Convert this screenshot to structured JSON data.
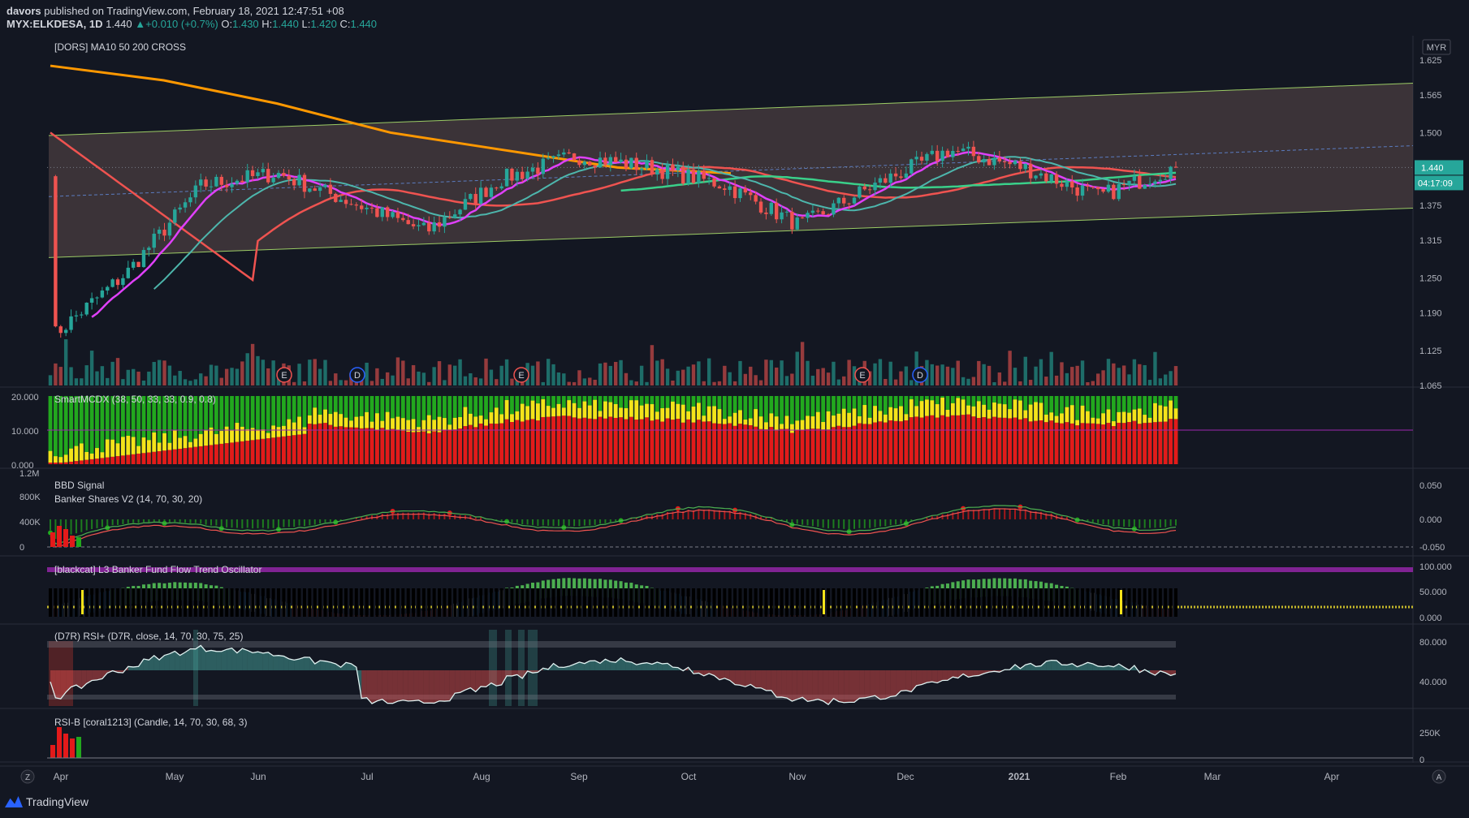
{
  "header": {
    "line1_user": "davors",
    "line1_rest": "published on TradingView.com, February 18, 2021 12:47:51 +08",
    "symbol": "MYX:ELKDESA, 1D",
    "last": "1.440",
    "change": "+0.010 (+0.7%)",
    "o_label": "O:",
    "o": "1.430",
    "h_label": "H:",
    "h": "1.440",
    "l_label": "L:",
    "l": "1.420",
    "c_label": "C:",
    "c": "1.440"
  },
  "currency": "MYR",
  "price_tag": "1.440",
  "countdown_tag": "04:17:09",
  "footer_brand": "TradingView",
  "axis_buttons": {
    "left": "Z",
    "right": "A"
  },
  "colors": {
    "bg": "#131722",
    "up": "#26a69a",
    "down": "#ef5350",
    "ma10": "#e040fb",
    "ma50": "#4db6ac",
    "ma200": "#ff9800",
    "ma_slow": "#ef5350",
    "ma_long": "#3ad08a",
    "channel": "#9ccc65",
    "channel_fill": "#5d4a4a"
  },
  "panes": [
    {
      "title": "[DORS] MA10 50 200 CROSS",
      "axis": [
        "1.625",
        "1.565",
        "1.500",
        "1.440",
        "1.375",
        "1.315",
        "1.250",
        "1.190",
        "1.125",
        "1.065"
      ]
    },
    {
      "title": "SmartMCDX (38, 50, 33, 33, 0.9, 0.8)",
      "axis": [
        "20.000",
        "10.000",
        "0.000"
      ]
    },
    {
      "title": "BBD Signal",
      "title2": "Banker Shares V2 (14, 70, 30, 20)",
      "axis": [
        "0.050",
        "0.000",
        "-0.050"
      ],
      "left_axis": [
        "1.2M",
        "800K",
        "400K",
        "0"
      ]
    },
    {
      "title": "[blackcat] L3 Banker Fund Flow Trend Oscillator",
      "axis": [
        "100.000",
        "50.000",
        "0.000"
      ]
    },
    {
      "title": "(D7R) RSI+ (D7R, close, 14, 70, 30, 75, 25)",
      "axis": [
        "80.000",
        "40.000"
      ]
    },
    {
      "title": "RSI-B [coral1213] (Candle, 14, 70, 30, 68, 3)",
      "axis": [
        "250K",
        "0"
      ]
    }
  ],
  "time_axis": [
    "Apr",
    "May",
    "Jun",
    "Jul",
    "Aug",
    "Sep",
    "Oct",
    "Nov",
    "Dec",
    "2021",
    "Feb",
    "Mar",
    "Apr"
  ],
  "event_markers": [
    {
      "label": "E"
    },
    {
      "label": "D"
    },
    {
      "label": "E"
    },
    {
      "label": "E"
    },
    {
      "label": "D"
    }
  ],
  "chart_data": {
    "type": "candlestick",
    "title": "[DORS] MA10 50 200 CROSS",
    "x_ticks": [
      "Apr",
      "May",
      "Jun",
      "Jul",
      "Aug",
      "Sep",
      "Oct",
      "Nov",
      "Dec",
      "2021",
      "Feb",
      "Mar",
      "Apr"
    ],
    "ylim": [
      1.065,
      1.65
    ],
    "y_ticks": [
      1.065,
      1.125,
      1.19,
      1.25,
      1.315,
      1.375,
      1.44,
      1.5,
      1.565,
      1.625
    ],
    "last_close": 1.44,
    "close_path": [
      {
        "x": "Apr",
        "y": 1.15
      },
      {
        "x": "May",
        "y": 1.26
      },
      {
        "x": "May",
        "y": 1.41
      },
      {
        "x": "Jun",
        "y": 1.43
      },
      {
        "x": "Jun",
        "y": 1.38
      },
      {
        "x": "Jul",
        "y": 1.33
      },
      {
        "x": "Aug",
        "y": 1.42
      },
      {
        "x": "Aug",
        "y": 1.46
      },
      {
        "x": "Sep",
        "y": 1.44
      },
      {
        "x": "Oct",
        "y": 1.41
      },
      {
        "x": "Nov",
        "y": 1.34
      },
      {
        "x": "Nov",
        "y": 1.41
      },
      {
        "x": "Dec",
        "y": 1.47
      },
      {
        "x": "2021",
        "y": 1.44
      },
      {
        "x": "Feb",
        "y": 1.39
      },
      {
        "x": "Feb",
        "y": 1.44
      }
    ],
    "ma_200_path": [
      1.615,
      1.59,
      1.55,
      1.5,
      1.47,
      1.44,
      1.43
    ],
    "channel_upper": [
      1.495,
      1.585
    ],
    "channel_lower": [
      1.285,
      1.37
    ]
  }
}
